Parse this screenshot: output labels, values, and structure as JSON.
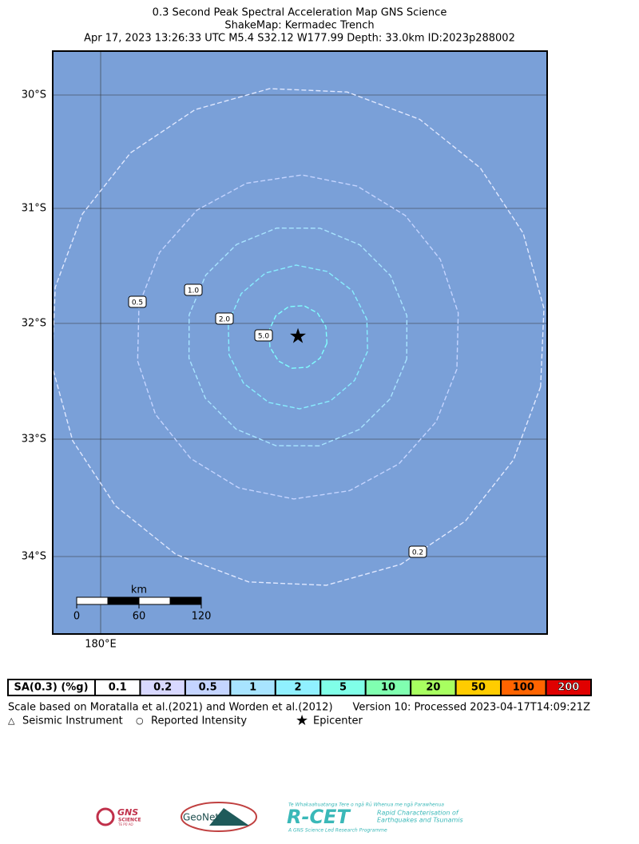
{
  "header": {
    "lines": [
      "0.3 Second Peak Spectral Acceleration Map GNS Science",
      "ShakeMap: Kermadec Trench",
      "Apr 17, 2023 13:26:33 UTC M5.4 S32.12 W177.99 Depth: 33.0km ID:2023p288002"
    ]
  },
  "map": {
    "lat_labels": [
      "30°S",
      "31°S",
      "32°S",
      "33°S",
      "34°S"
    ],
    "lon_labels": [
      "180°E"
    ],
    "contour_labels": [
      "0.5",
      "1.0",
      "2.0",
      "5.0",
      "0.2"
    ],
    "scale_bar": {
      "unit": "km",
      "labels": [
        "0",
        "60",
        "120"
      ]
    }
  },
  "legend": {
    "header": "SA(0.3) (%g)",
    "cells": [
      {
        "label": "0.1",
        "color": "#ffffff"
      },
      {
        "label": "0.2",
        "color": "#d8d8ff"
      },
      {
        "label": "0.5",
        "color": "#c4d4ff"
      },
      {
        "label": "1",
        "color": "#a8e4ff"
      },
      {
        "label": "2",
        "color": "#90f0ff"
      },
      {
        "label": "5",
        "color": "#80ffe8"
      },
      {
        "label": "10",
        "color": "#80ffb0"
      },
      {
        "label": "20",
        "color": "#a8ff60"
      },
      {
        "label": "50",
        "color": "#ffcc00"
      },
      {
        "label": "100",
        "color": "#ff6400"
      },
      {
        "label": "200",
        "color": "#e00000"
      }
    ],
    "note": "Scale based on Moratalla et al.(2021) and Worden et al.(2012)",
    "version": "Version 10: Processed 2023-04-17T14:09:21Z",
    "symbols": [
      "Seismic Instrument",
      "Reported Intensity",
      "Epicenter"
    ]
  },
  "logos": {
    "gns": [
      "GNS",
      "SCIENCE",
      "TE PŪ AO"
    ],
    "geonet": "GeoNet",
    "rcet": [
      "Te Whakaahuatanga Tere o ngā Rū Whenua me ngā Parawhenua",
      "R-CET",
      "Rapid Characterisation of",
      "Earthquakes and Tsunamis",
      "A GNS Science Led Research Programme"
    ]
  }
}
